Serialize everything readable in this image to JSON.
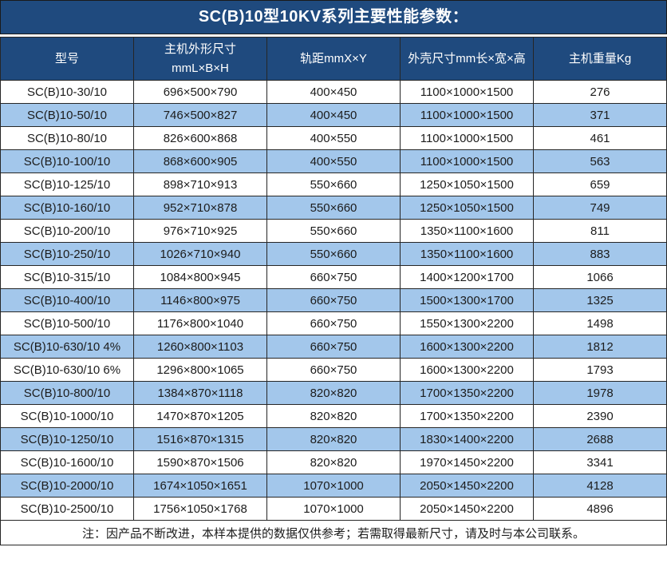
{
  "title": "SC(B)10型10KV系列主要性能参数：",
  "colors": {
    "header_bg": "#1F4A7E",
    "alt_row_bg": "#A3C7EB",
    "border": "#262626",
    "header_text": "#FFFFFF",
    "body_text": "#1C1C1C"
  },
  "table": {
    "headers": [
      {
        "lines": [
          "型号"
        ]
      },
      {
        "lines": [
          "主机外形尺寸",
          "mmL×B×H"
        ]
      },
      {
        "lines": [
          "轨距mmX×Y"
        ]
      },
      {
        "lines": [
          "外壳尺寸mm长×宽×高"
        ]
      },
      {
        "lines": [
          "主机重量Kg"
        ]
      }
    ],
    "rows": [
      [
        "SC(B)10-30/10",
        "696×500×790",
        "400×450",
        "1100×1000×1500",
        "276"
      ],
      [
        "SC(B)10-50/10",
        "746×500×827",
        "400×450",
        "1100×1000×1500",
        "371"
      ],
      [
        "SC(B)10-80/10",
        "826×600×868",
        "400×550",
        "1100×1000×1500",
        "461"
      ],
      [
        "SC(B)10-100/10",
        "868×600×905",
        "400×550",
        "1100×1000×1500",
        "563"
      ],
      [
        "SC(B)10-125/10",
        "898×710×913",
        "550×660",
        "1250×1050×1500",
        "659"
      ],
      [
        "SC(B)10-160/10",
        "952×710×878",
        "550×660",
        "1250×1050×1500",
        "749"
      ],
      [
        "SC(B)10-200/10",
        "976×710×925",
        "550×660",
        "1350×1100×1600",
        "811"
      ],
      [
        "SC(B)10-250/10",
        "1026×710×940",
        "550×660",
        "1350×1100×1600",
        "883"
      ],
      [
        "SC(B)10-315/10",
        "1084×800×945",
        "660×750",
        "1400×1200×1700",
        "1066"
      ],
      [
        "SC(B)10-400/10",
        "1146×800×975",
        "660×750",
        "1500×1300×1700",
        "1325"
      ],
      [
        "SC(B)10-500/10",
        "1176×800×1040",
        "660×750",
        "1550×1300×2200",
        "1498"
      ],
      [
        "SC(B)10-630/10 4%",
        "1260×800×1103",
        "660×750",
        "1600×1300×2200",
        "1812"
      ],
      [
        "SC(B)10-630/10 6%",
        "1296×800×1065",
        "660×750",
        "1600×1300×2200",
        "1793"
      ],
      [
        "SC(B)10-800/10",
        "1384×870×1118",
        "820×820",
        "1700×1350×2200",
        "1978"
      ],
      [
        "SC(B)10-1000/10",
        "1470×870×1205",
        "820×820",
        "1700×1350×2200",
        "2390"
      ],
      [
        "SC(B)10-1250/10",
        "1516×870×1315",
        "820×820",
        "1830×1400×2200",
        "2688"
      ],
      [
        "SC(B)10-1600/10",
        "1590×870×1506",
        "820×820",
        "1970×1450×2200",
        "3341"
      ],
      [
        "SC(B)10-2000/10",
        "1674×1050×1651",
        "1070×1000",
        "2050×1450×2200",
        "4128"
      ],
      [
        "SC(B)10-2500/10",
        "1756×1050×1768",
        "1070×1000",
        "2050×1450×2200",
        "4896"
      ]
    ]
  },
  "note": "注：因产品不断改进，本样本提供的数据仅供参考；若需取得最新尺寸，请及时与本公司联系。"
}
